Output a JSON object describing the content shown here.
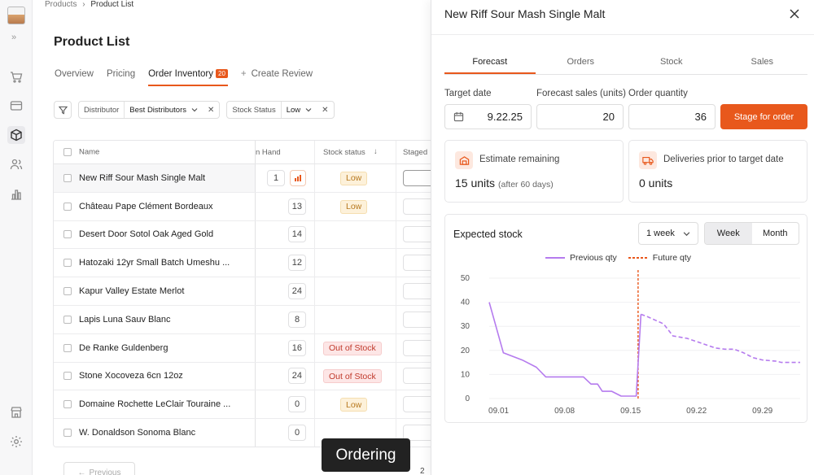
{
  "breadcrumb": {
    "parent": "Products",
    "separator": "›",
    "current": "Product List"
  },
  "page_title": "Product List",
  "tabs": [
    {
      "label": "Overview",
      "active": false
    },
    {
      "label": "Pricing",
      "active": false
    },
    {
      "label": "Order Inventory",
      "active": true,
      "badge": "20"
    },
    {
      "label": "Create Review",
      "active": false,
      "prefix": "+"
    }
  ],
  "filters": {
    "distributor": {
      "key": "Distributor",
      "value": "Best Distributors"
    },
    "stock_status": {
      "key": "Stock Status",
      "value": "Low"
    }
  },
  "table": {
    "headers": {
      "name": "Name",
      "on_hand": "n Hand",
      "stock_status": "Stock status",
      "staged": "Staged"
    },
    "rows": [
      {
        "name": "New Riff Sour Mash Single Malt",
        "on_hand": "1",
        "status": "Low",
        "status_type": "low"
      },
      {
        "name": "Château Pape Clément Bordeaux",
        "on_hand": "13",
        "status": "Low",
        "status_type": "low"
      },
      {
        "name": "Desert Door Sotol Oak Aged Gold",
        "on_hand": "14",
        "status": "",
        "status_type": ""
      },
      {
        "name": "Hatozaki 12yr Small Batch Umeshu ...",
        "on_hand": "12",
        "status": "",
        "status_type": ""
      },
      {
        "name": "Kapur Valley Estate Merlot",
        "on_hand": "24",
        "status": "",
        "status_type": ""
      },
      {
        "name": "Lapis Luna Sauv Blanc",
        "on_hand": "8",
        "status": "",
        "status_type": ""
      },
      {
        "name": "De Ranke Guldenberg",
        "on_hand": "16",
        "status": "Out of Stock",
        "status_type": "out"
      },
      {
        "name": "Stone Xocoveza 6cn 12oz",
        "on_hand": "24",
        "status": "Out of Stock",
        "status_type": "out"
      },
      {
        "name": "Domaine Rochette LeClair Touraine ...",
        "on_hand": "0",
        "status": "Low",
        "status_type": "low"
      },
      {
        "name": "W. Donaldson Sonoma Blanc",
        "on_hand": "0",
        "status": "",
        "status_type": ""
      }
    ]
  },
  "pagination": {
    "previous": "Previous",
    "page": "2"
  },
  "tooltip": "Ordering",
  "panel": {
    "title": "New Riff Sour Mash Single Malt",
    "tabs": [
      "Forecast",
      "Orders",
      "Stock",
      "Sales"
    ],
    "active_tab": "Forecast",
    "target_date": {
      "label": "Target date",
      "value": "9.22.25"
    },
    "forecast_sales": {
      "label": "Forecast sales (units)",
      "value": "20"
    },
    "order_quantity": {
      "label": "Order quantity",
      "value": "36"
    },
    "stage_button": "Stage for order",
    "estimate": {
      "title": "Estimate remaining",
      "value": "15 units",
      "note": "(after 60 days)"
    },
    "deliveries": {
      "title": "Deliveries prior to target date",
      "value": "0 units"
    },
    "chart_card": {
      "title": "Expected stock",
      "range_select": "1 week",
      "toggle": [
        "Week",
        "Month"
      ],
      "toggle_active": "Week"
    }
  },
  "colors": {
    "accent": "#e8581c",
    "previous_line": "#b57bee",
    "future_line": "#e8581c"
  },
  "chart_data": {
    "type": "line",
    "title": "Expected stock",
    "x_ticks": [
      "09.01",
      "09.08",
      "09.15",
      "09.22",
      "09.29"
    ],
    "y_ticks": [
      0,
      10,
      20,
      30,
      40,
      50
    ],
    "ylim": [
      0,
      50
    ],
    "xlim": [
      0,
      33
    ],
    "grid": true,
    "legend_position": "top-center",
    "marker_x": 15.8,
    "series": [
      {
        "name": "Previous qty",
        "style": "solid",
        "color": "#b57bee",
        "points": [
          [
            0,
            40
          ],
          [
            1.5,
            19
          ],
          [
            3.5,
            16
          ],
          [
            5,
            13
          ],
          [
            6,
            9
          ],
          [
            7,
            9
          ],
          [
            8,
            9
          ],
          [
            9,
            9
          ],
          [
            10,
            9
          ],
          [
            10.8,
            6
          ],
          [
            11.5,
            6
          ],
          [
            12,
            3
          ],
          [
            13,
            3
          ],
          [
            14,
            1
          ],
          [
            15.1,
            1
          ],
          [
            15.6,
            1
          ],
          [
            16.1,
            35
          ]
        ]
      },
      {
        "name": "Future qty",
        "style": "dashed",
        "color": "#b57bee",
        "points": [
          [
            16.1,
            35
          ],
          [
            16.8,
            34
          ],
          [
            18.5,
            31
          ],
          [
            19.5,
            26
          ],
          [
            21,
            25
          ],
          [
            22.5,
            23
          ],
          [
            24,
            21
          ],
          [
            25,
            20.5
          ],
          [
            26,
            20.5
          ],
          [
            27,
            19
          ],
          [
            28,
            17
          ],
          [
            29,
            16
          ],
          [
            30.5,
            15.5
          ],
          [
            31,
            15
          ],
          [
            32,
            15
          ],
          [
            33,
            15
          ]
        ]
      }
    ]
  }
}
